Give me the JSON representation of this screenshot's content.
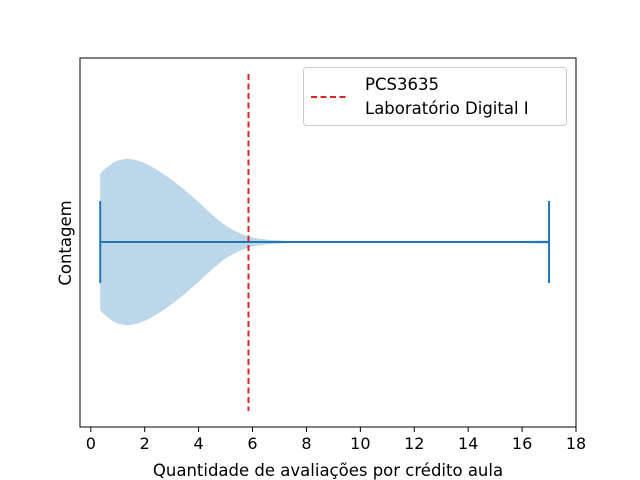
{
  "chart_data": {
    "type": "violin",
    "orientation": "horizontal",
    "xlabel": "Quantidade de avaliações por crédito aula",
    "ylabel": "Contagem",
    "xlim": [
      -0.4,
      18
    ],
    "x_ticks": [
      0,
      2,
      4,
      6,
      8,
      10,
      12,
      14,
      16,
      18
    ],
    "grid": false,
    "violin": {
      "min": 0.35,
      "max": 17.0,
      "fill_color": "#bcd6ea",
      "line_color": "#1f77b4",
      "density_profile": [
        {
          "x": 0.35,
          "d": 0.82
        },
        {
          "x": 0.6,
          "d": 0.9
        },
        {
          "x": 1.0,
          "d": 0.98
        },
        {
          "x": 1.45,
          "d": 1.0
        },
        {
          "x": 2.0,
          "d": 0.95
        },
        {
          "x": 2.5,
          "d": 0.86
        },
        {
          "x": 3.0,
          "d": 0.75
        },
        {
          "x": 3.5,
          "d": 0.62
        },
        {
          "x": 4.0,
          "d": 0.48
        },
        {
          "x": 4.5,
          "d": 0.33
        },
        {
          "x": 5.0,
          "d": 0.2
        },
        {
          "x": 5.5,
          "d": 0.11
        },
        {
          "x": 6.0,
          "d": 0.055
        },
        {
          "x": 6.5,
          "d": 0.03
        },
        {
          "x": 7.0,
          "d": 0.018
        },
        {
          "x": 7.5,
          "d": 0.01
        },
        {
          "x": 8.0,
          "d": 0.005
        },
        {
          "x": 9.0,
          "d": 0.002
        },
        {
          "x": 10.0,
          "d": 0.0
        },
        {
          "x": 13.5,
          "d": 0.0
        },
        {
          "x": 14.5,
          "d": 0.002
        },
        {
          "x": 15.5,
          "d": 0.007
        },
        {
          "x": 16.3,
          "d": 0.016
        },
        {
          "x": 17.0,
          "d": 0.02
        }
      ]
    },
    "reference_line": {
      "x": 5.85,
      "color": "#d62728",
      "style": "dashed",
      "label_line1": "PCS3635",
      "label_line2": "Laboratório Digital I"
    },
    "legend_position": "top-right"
  }
}
